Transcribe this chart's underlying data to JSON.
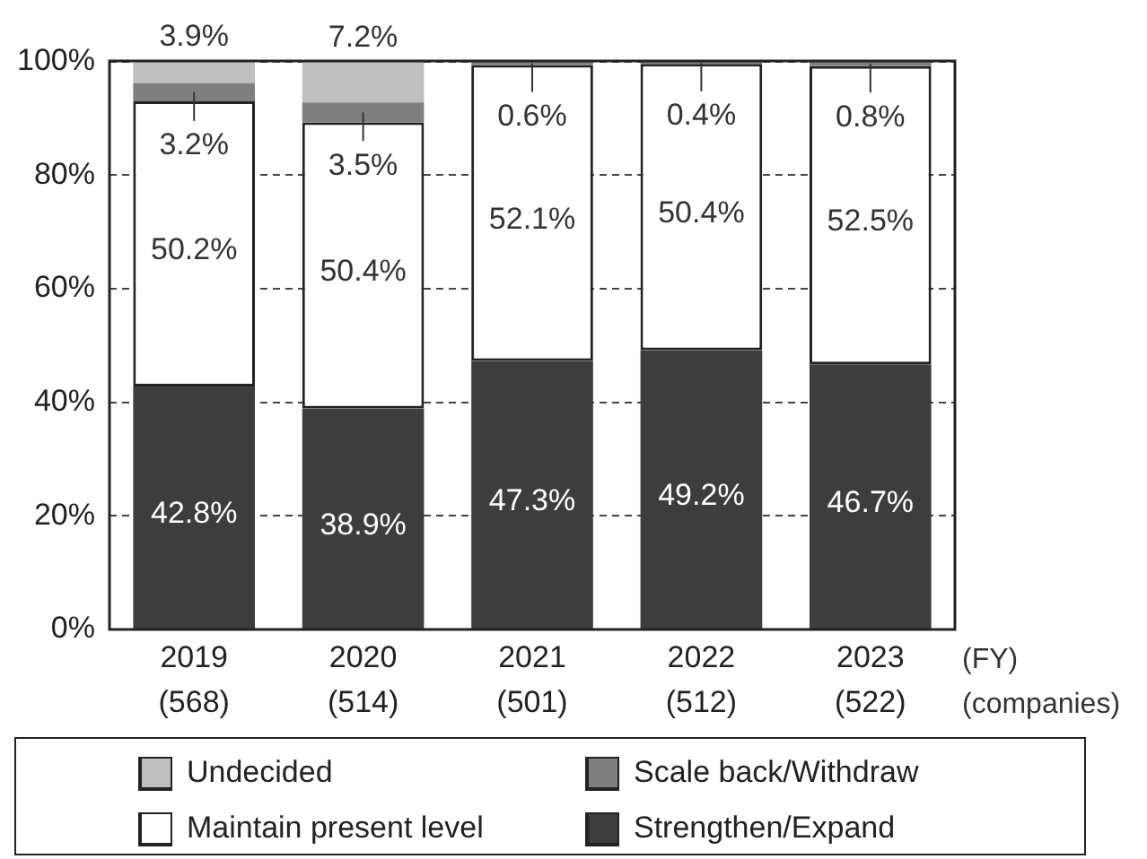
{
  "chart_data": {
    "type": "bar",
    "stacked": true,
    "categories": [
      "2019\n(568)",
      "2020\n(514)",
      "2021\n(501)",
      "2022\n(512)",
      "2023\n(522)"
    ],
    "xlabel": "(FY)\n(companies)",
    "series": [
      {
        "name": "Strengthen/Expand",
        "color": "#3d3d3d",
        "values": [
          42.8,
          38.9,
          47.3,
          49.2,
          46.7
        ],
        "value_labels": [
          "42.8%",
          "38.9%",
          "47.3%",
          "49.2%",
          "46.7%"
        ]
      },
      {
        "name": "Maintain present level",
        "color": "#ffffff",
        "values": [
          50.2,
          50.4,
          52.1,
          50.4,
          52.5
        ],
        "value_labels": [
          "50.2%",
          "50.4%",
          "52.1%",
          "50.4%",
          "52.5%"
        ]
      },
      {
        "name": "Scale back/Withdraw",
        "color": "#7f7f7f",
        "values": [
          3.2,
          3.5,
          0.6,
          0.4,
          0.8
        ],
        "value_labels": [
          "3.2%",
          "3.5%",
          "0.6%",
          "0.4%",
          "0.8%"
        ]
      },
      {
        "name": "Undecided",
        "color": "#bfbfbf",
        "values": [
          3.9,
          7.2,
          null,
          null,
          null
        ],
        "value_labels": [
          "3.9%",
          "7.2%",
          null,
          null,
          null
        ]
      }
    ],
    "ylim": [
      0,
      100.1
    ],
    "yticks": [
      {
        "value": 0,
        "label": "0%"
      },
      {
        "value": 20,
        "label": "20%"
      },
      {
        "value": 40,
        "label": "40%"
      },
      {
        "value": 60,
        "label": "60%"
      },
      {
        "value": 80,
        "label": "80%"
      },
      {
        "value": 100,
        "label": "100%"
      }
    ],
    "grid": "y",
    "legend": "bottom"
  }
}
